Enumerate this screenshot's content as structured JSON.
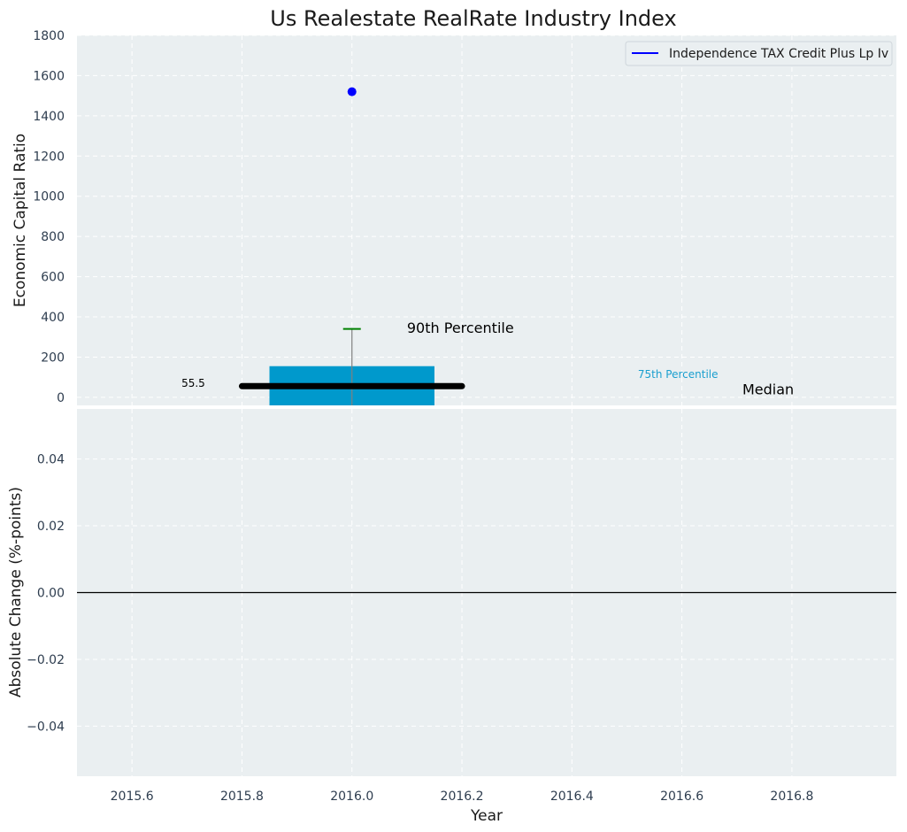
{
  "title": "Us Realestate RealRate Industry Index",
  "colors": {
    "panel_bg": "#eaeff1",
    "box": "#0099cc",
    "median_line": "#000000",
    "whisker": "#808080",
    "whisker_cap": "#008000",
    "point": "#0000ff",
    "p75_label": "#1a9fcf",
    "zero_line": "#000000"
  },
  "chart_data": [
    {
      "type": "box",
      "title": "Us Realestate RealRate Industry Index",
      "xlabel": "",
      "ylabel": "Economic Capital Ratio",
      "xlim": [
        2015.5,
        2016.99
      ],
      "ylim": [
        -40,
        1800
      ],
      "x_ticks": [
        2015.6,
        2015.8,
        2016.0,
        2016.2,
        2016.4,
        2016.6,
        2016.8
      ],
      "y_ticks": [
        0,
        200,
        400,
        600,
        800,
        1000,
        1200,
        1400,
        1600,
        1800
      ],
      "grid": true,
      "legend_position": "top-right",
      "box": {
        "x": 2016.0,
        "width": 0.3,
        "q_low": -40,
        "q_high": 155,
        "median": 55.5,
        "whisker_high": 340
      },
      "median_line": {
        "x_start": 2015.8,
        "x_end": 2016.2,
        "y": 55.5
      },
      "series": [
        {
          "name": "Independence TAX Credit Plus Lp Iv",
          "x": [
            2016.0
          ],
          "y": [
            1520
          ]
        }
      ],
      "annotations": [
        {
          "id": "median-value",
          "text": "55.5",
          "x": 2015.69,
          "y": 70
        },
        {
          "id": "p90",
          "text": "90th Percentile",
          "x": 2016.1,
          "y": 345
        },
        {
          "id": "p75",
          "text": "75th Percentile",
          "x": 2016.52,
          "y": 115
        },
        {
          "id": "median",
          "text": "Median",
          "x": 2016.71,
          "y": 40
        }
      ]
    },
    {
      "type": "line",
      "xlabel": "Year",
      "ylabel": "Absolute Change (%-points)",
      "xlim": [
        2015.5,
        2016.99
      ],
      "ylim": [
        -0.055,
        0.055
      ],
      "x_ticks": [
        2015.6,
        2015.8,
        2016.0,
        2016.2,
        2016.4,
        2016.6,
        2016.8
      ],
      "x_tick_labels": [
        "2015.6",
        "2015.8",
        "2016.0",
        "2016.2",
        "2016.4",
        "2016.6",
        "2016.8"
      ],
      "y_ticks": [
        -0.04,
        -0.02,
        0.0,
        0.02,
        0.04
      ],
      "y_tick_labels": [
        "−0.04",
        "−0.02",
        "0.00",
        "0.02",
        "0.04"
      ],
      "grid": true,
      "reference_line_y": 0.0
    }
  ]
}
